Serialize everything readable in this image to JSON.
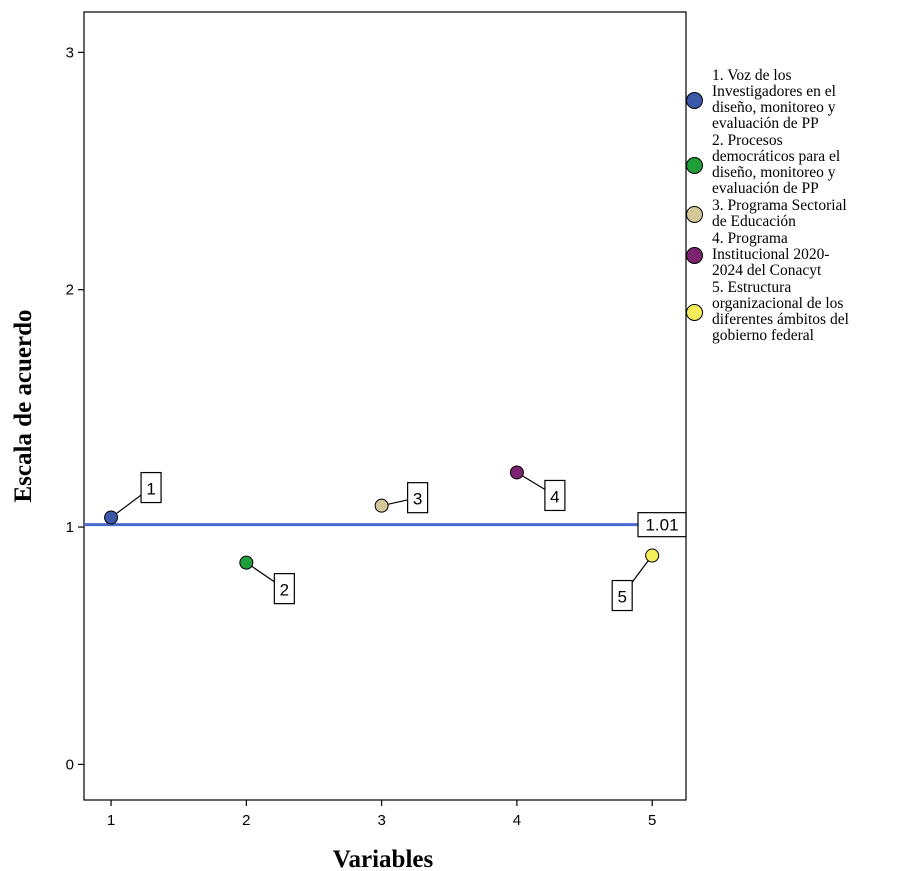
{
  "chart_data": {
    "type": "scatter",
    "title": "",
    "xlabel": "Variables",
    "ylabel": "Escala de acuerdo",
    "xlim": [
      0.8,
      5.25
    ],
    "ylim": [
      -0.15,
      3.17
    ],
    "x_ticks": [
      1,
      2,
      3,
      4,
      5
    ],
    "x_tick_labels": [
      "1",
      "2",
      "3",
      "4",
      "5"
    ],
    "y_ticks": [
      0,
      1,
      2,
      3
    ],
    "y_tick_labels": [
      "0",
      "1",
      "2",
      "3"
    ],
    "grid": false,
    "legend_position": "right",
    "reference_line": {
      "value": 1.01,
      "label": "1.01",
      "color": "#4a6ad0"
    },
    "series": [
      {
        "x": 1,
        "y": 1.04,
        "label": "1",
        "color": "#3a57a8",
        "legend": [
          "1. Voz de los",
          "Investigadores en el",
          "diseño, monitoreo y",
          "evaluación de PP"
        ]
      },
      {
        "x": 2,
        "y": 0.85,
        "label": "2",
        "color": "#1f9e3a",
        "legend": [
          "2. Procesos",
          "democráticos para el",
          "diseño, monitoreo y",
          "evaluación de PP"
        ]
      },
      {
        "x": 3,
        "y": 1.09,
        "label": "3",
        "color": "#d4c79a",
        "legend": [
          "3. Programa Sectorial",
          "de Educación"
        ]
      },
      {
        "x": 4,
        "y": 1.23,
        "label": "4",
        "color": "#7b2270",
        "legend": [
          "4. Programa",
          "Institucional 2020-",
          "2024 del Conacyt"
        ]
      },
      {
        "x": 5,
        "y": 0.88,
        "label": "5",
        "color": "#f5ee5a",
        "legend": [
          "5. Estructura",
          "organizacional de los",
          "diferentes ámbitos del",
          "gobierno federal"
        ]
      }
    ]
  }
}
